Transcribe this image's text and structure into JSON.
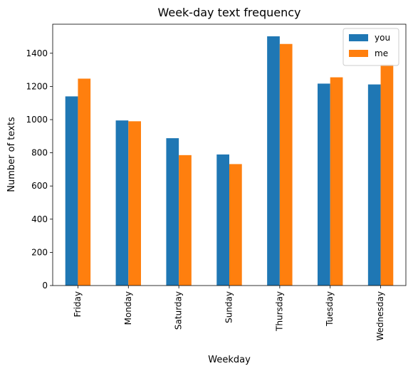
{
  "chart_data": {
    "type": "bar",
    "title": "Week-day text frequency",
    "xlabel": "Weekday",
    "ylabel": "Number of texts",
    "categories": [
      "Friday",
      "Monday",
      "Saturday",
      "Sunday",
      "Thursday",
      "Tuesday",
      "Wednesday"
    ],
    "series": [
      {
        "name": "you",
        "color": "#1f77b4",
        "values": [
          1140,
          995,
          888,
          790,
          1502,
          1217,
          1212
        ]
      },
      {
        "name": "me",
        "color": "#ff7f0e",
        "values": [
          1247,
          990,
          786,
          732,
          1456,
          1255,
          1332
        ]
      }
    ],
    "ylim": [
      0,
      1575
    ],
    "yticks": [
      0,
      200,
      400,
      600,
      800,
      1000,
      1200,
      1400
    ],
    "grid": false,
    "legend_position": "top-right"
  }
}
